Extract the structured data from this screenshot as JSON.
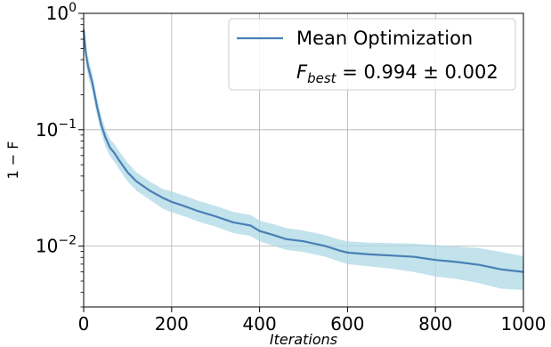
{
  "chart_data": {
    "type": "line",
    "xlabel": "Iterations",
    "ylabel": "1 − F",
    "xlim": [
      0,
      1000
    ],
    "ylim": [
      0.003,
      1.0
    ],
    "yscale": "log",
    "grid": true,
    "legend_placement": "top-right",
    "x_ticks": [
      0,
      200,
      400,
      600,
      800,
      1000
    ],
    "x_tick_labels": [
      "0",
      "200",
      "400",
      "600",
      "800",
      "1000"
    ],
    "y_ticks": [
      0.01,
      0.1,
      1.0
    ],
    "y_tick_labels": [
      {
        "base": "10",
        "exp": "−2"
      },
      {
        "base": "10",
        "exp": "−1"
      },
      {
        "base": "10",
        "exp": "0"
      }
    ],
    "series": [
      {
        "name": "Mean Optimization",
        "color": "#4a7fb5",
        "band_color": "#add8e6",
        "x": [
          0,
          5,
          10,
          20,
          30,
          40,
          50,
          60,
          70,
          80,
          100,
          120,
          150,
          180,
          200,
          230,
          260,
          300,
          340,
          360,
          380,
          400,
          430,
          460,
          500,
          550,
          580,
          600,
          650,
          700,
          750,
          800,
          850,
          900,
          950,
          1000
        ],
        "mean": [
          0.72,
          0.45,
          0.35,
          0.25,
          0.16,
          0.11,
          0.085,
          0.07,
          0.063,
          0.055,
          0.043,
          0.036,
          0.03,
          0.026,
          0.024,
          0.022,
          0.02,
          0.018,
          0.016,
          0.0155,
          0.015,
          0.0135,
          0.0125,
          0.0115,
          0.011,
          0.01,
          0.0092,
          0.0088,
          0.0085,
          0.0083,
          0.0081,
          0.0076,
          0.0073,
          0.0069,
          0.0063,
          0.006
        ],
        "lower": [
          0.6,
          0.38,
          0.29,
          0.21,
          0.135,
          0.093,
          0.071,
          0.059,
          0.053,
          0.046,
          0.036,
          0.03,
          0.025,
          0.021,
          0.0195,
          0.018,
          0.0163,
          0.0147,
          0.013,
          0.0126,
          0.0122,
          0.011,
          0.0101,
          0.0093,
          0.0089,
          0.0081,
          0.0074,
          0.007,
          0.0067,
          0.0064,
          0.006,
          0.0055,
          0.0052,
          0.0048,
          0.0043,
          0.0042
        ],
        "upper": [
          0.87,
          0.54,
          0.42,
          0.3,
          0.19,
          0.13,
          0.1,
          0.083,
          0.075,
          0.066,
          0.052,
          0.043,
          0.036,
          0.031,
          0.0295,
          0.027,
          0.0246,
          0.0221,
          0.0197,
          0.0191,
          0.0185,
          0.0166,
          0.0155,
          0.0143,
          0.0136,
          0.0124,
          0.0114,
          0.011,
          0.0107,
          0.0106,
          0.0105,
          0.0102,
          0.0099,
          0.0096,
          0.0089,
          0.0082
        ]
      }
    ],
    "legend": {
      "entry_label": "Mean Optimization",
      "note_var": "F",
      "note_sub": "best",
      "note_value": " = 0.994 ± 0.002"
    }
  }
}
